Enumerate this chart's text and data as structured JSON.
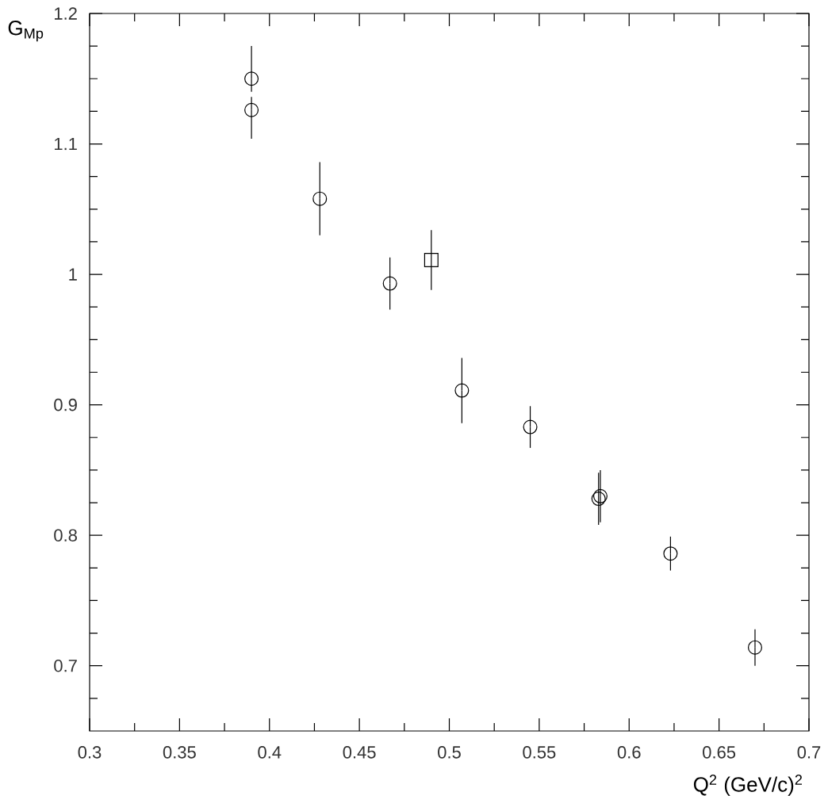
{
  "chart_data": {
    "type": "scatter",
    "xlabel": "Q$^{2}$ (GeV/c)$^{2}$",
    "ylabel": "G$_{Mp}$",
    "xlim": [
      0.3,
      0.7
    ],
    "ylim": [
      0.65,
      1.2
    ],
    "xticks": [
      0.3,
      {
        "value": 0.325,
        "label": null
      },
      0.35,
      {
        "value": 0.375,
        "label": null
      },
      0.4,
      {
        "value": 0.425,
        "label": null
      },
      0.45,
      {
        "value": 0.475,
        "label": null
      },
      0.5,
      {
        "value": 0.525,
        "label": null
      },
      0.55,
      {
        "value": 0.575,
        "label": null
      },
      0.6,
      {
        "value": 0.625,
        "label": null
      },
      0.65,
      {
        "value": 0.675,
        "label": null
      },
      0.7
    ],
    "yticks": [
      {
        "value": 0.675,
        "label": null
      },
      0.7,
      {
        "value": 0.725,
        "label": null
      },
      {
        "value": 0.75,
        "label": null
      },
      {
        "value": 0.775,
        "label": null
      },
      0.8,
      {
        "value": 0.825,
        "label": null
      },
      {
        "value": 0.85,
        "label": null
      },
      {
        "value": 0.875,
        "label": null
      },
      0.9,
      {
        "value": 0.925,
        "label": null
      },
      {
        "value": 0.95,
        "label": null
      },
      {
        "value": 0.975,
        "label": null
      },
      1,
      {
        "value": 1.025,
        "label": null
      },
      {
        "value": 1.05,
        "label": null
      },
      {
        "value": 1.075,
        "label": null
      },
      1.1,
      {
        "value": 1.125,
        "label": null
      },
      {
        "value": 1.15,
        "label": null
      },
      {
        "value": 1.175,
        "label": null
      },
      1.2
    ],
    "series": [
      {
        "color": "#000000",
        "marker": "circle",
        "x": [
          0.39,
          0.39,
          0.428,
          0.467,
          0.507,
          0.545,
          0.584,
          0.583,
          0.623,
          0.67
        ],
        "values": [
          1.15,
          1.126,
          1.058,
          0.993,
          0.911,
          0.883,
          0.83,
          0.828,
          0.786,
          0.714
        ],
        "errors": [
          [
            1.14,
            1.175
          ],
          [
            1.104,
            1.136
          ],
          0.028,
          0.02,
          0.025,
          0.016,
          0.02,
          0.02,
          0.013,
          0.014
        ]
      },
      {
        "color": "#000000",
        "marker": "square",
        "x": [
          0.49
        ],
        "values": [
          1.011
        ],
        "errors": [
          0.023
        ]
      }
    ]
  }
}
